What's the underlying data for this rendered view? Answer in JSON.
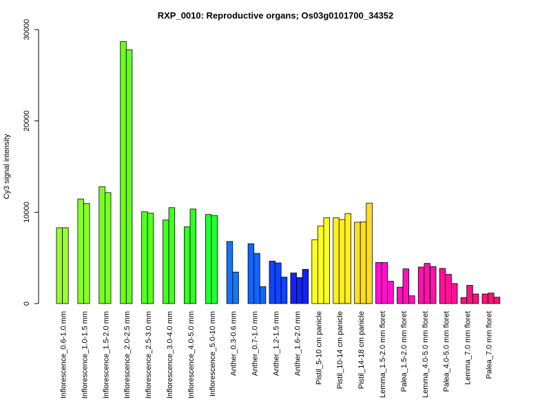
{
  "chart_data": {
    "type": "bar",
    "title": "RXP_0010: Reproductive organs; Os03g0101700_34352",
    "xlabel": "",
    "ylabel": "Cy3 signal intensity",
    "ylim": [
      0,
      30000
    ],
    "yticks": [
      0,
      10000,
      20000,
      30000
    ],
    "grid": false,
    "groups": [
      {
        "label": "Inflorescence_0.6-1.0 mm",
        "color": "#99FF33",
        "values": [
          8300,
          8300
        ]
      },
      {
        "label": "Inflorescence_1.0-1.5 mm",
        "color": "#88FF2D",
        "values": [
          11450,
          10950
        ]
      },
      {
        "label": "Inflorescence_1.5-2.0 mm",
        "color": "#77FF27",
        "values": [
          12800,
          12150
        ]
      },
      {
        "label": "Inflorescence_2.0-2.5 mm",
        "color": "#66FF22",
        "values": [
          28700,
          27800
        ]
      },
      {
        "label": "Inflorescence_2.5-3.0 mm",
        "color": "#55FF22",
        "values": [
          10050,
          9900
        ]
      },
      {
        "label": "Inflorescence_3.0-4.0 mm",
        "color": "#44FF22",
        "values": [
          9150,
          10500
        ]
      },
      {
        "label": "Inflorescence_4.0-5.0 mm",
        "color": "#33FF22",
        "values": [
          8400,
          10350
        ]
      },
      {
        "label": "Inflorescence_5.0-10 mm",
        "color": "#22FF33",
        "values": [
          9750,
          9650
        ]
      },
      {
        "label": "Anther_0.3-0.6 mm",
        "color": "#1177FF",
        "values": [
          6800,
          3450
        ]
      },
      {
        "label": "Anther_0.7-1.0 mm",
        "color": "#1166FF",
        "values": [
          6550,
          5500,
          1850
        ]
      },
      {
        "label": "Anther_1.2-1.5 mm",
        "color": "#1144FF",
        "values": [
          4650,
          4450,
          2900
        ]
      },
      {
        "label": "Anther_1.6-2.0 mm",
        "color": "#1122FF",
        "values": [
          3350,
          2850,
          3750
        ]
      },
      {
        "label": "Pistil_5-10 cm panicle",
        "color": "#FFFF22",
        "values": [
          7000,
          8500,
          9400
        ]
      },
      {
        "label": "Pistil_10-14 cm panicle",
        "color": "#FFEE22",
        "values": [
          9400,
          9200,
          9850
        ]
      },
      {
        "label": "Pistil_14-18 cm panicle",
        "color": "#FFDD22",
        "values": [
          8900,
          8950,
          11000
        ]
      },
      {
        "label": "Lemma_1.5-2.0 mm floret",
        "color": "#FF11CC",
        "values": [
          4500,
          4500,
          2450
        ]
      },
      {
        "label": "Palea_1.5-2.0 mm floret",
        "color": "#FF11BB",
        "values": [
          1800,
          3800,
          850
        ]
      },
      {
        "label": "Lemma_4.0-5.0 mm floret",
        "color": "#FF11AA",
        "values": [
          4000,
          4400,
          4050
        ]
      },
      {
        "label": "Palea_4.0-5.0 mm floret",
        "color": "#FF1199",
        "values": [
          3850,
          3200,
          2200
        ]
      },
      {
        "label": "Lemma_7.0 mm floret",
        "color": "#FF1188",
        "values": [
          650,
          2000,
          1050
        ]
      },
      {
        "label": "Palea_7.0 mm floret",
        "color": "#FF1177",
        "values": [
          1050,
          1150,
          700
        ]
      }
    ]
  }
}
